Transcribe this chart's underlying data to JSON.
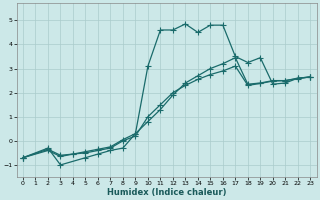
{
  "xlabel": "Humidex (Indice chaleur)",
  "bg_color": "#cce8e8",
  "grid_color": "#aacccc",
  "line_color": "#1a6b6b",
  "xlim": [
    -0.5,
    23.5
  ],
  "ylim": [
    -1.5,
    5.7
  ],
  "xticks": [
    0,
    1,
    2,
    3,
    4,
    5,
    6,
    7,
    8,
    9,
    10,
    11,
    12,
    13,
    14,
    15,
    16,
    17,
    18,
    19,
    20,
    21,
    22,
    23
  ],
  "yticks": [
    -1,
    0,
    1,
    2,
    3,
    4,
    5
  ],
  "line1_x": [
    0,
    2,
    3,
    4,
    5,
    6,
    7,
    8,
    9,
    10,
    11,
    12,
    13,
    14,
    15,
    16,
    17,
    18,
    19,
    20,
    21,
    22,
    23
  ],
  "line1_y": [
    -0.7,
    -0.35,
    -0.6,
    -0.55,
    -0.45,
    -0.35,
    -0.25,
    0.05,
    0.3,
    0.8,
    1.3,
    1.9,
    2.4,
    2.7,
    3.0,
    3.2,
    3.45,
    2.35,
    2.4,
    2.5,
    2.5,
    2.6,
    2.65
  ],
  "line2_x": [
    0,
    2,
    3,
    5,
    6,
    7,
    8,
    9,
    10,
    11,
    12,
    13,
    14,
    15,
    16,
    17,
    18,
    19,
    20,
    21,
    22,
    23
  ],
  "line2_y": [
    -0.7,
    -0.3,
    -1.0,
    -0.7,
    -0.55,
    -0.4,
    -0.3,
    0.3,
    3.1,
    4.6,
    4.6,
    4.85,
    4.5,
    4.8,
    4.8,
    3.5,
    3.25,
    3.45,
    2.35,
    2.4,
    2.6,
    2.65
  ],
  "line3_x": [
    0,
    2,
    3,
    4,
    5,
    6,
    7,
    8,
    9,
    10,
    11,
    12,
    13,
    14,
    15,
    16,
    17,
    18,
    19,
    20,
    21,
    22,
    23
  ],
  "line3_y": [
    -0.7,
    -0.4,
    -0.65,
    -0.55,
    -0.5,
    -0.4,
    -0.3,
    0.0,
    0.2,
    1.0,
    1.5,
    2.0,
    2.3,
    2.55,
    2.75,
    2.9,
    3.1,
    2.3,
    2.38,
    2.48,
    2.5,
    2.58,
    2.65
  ],
  "marker_size": 2.5,
  "line_width": 0.9
}
